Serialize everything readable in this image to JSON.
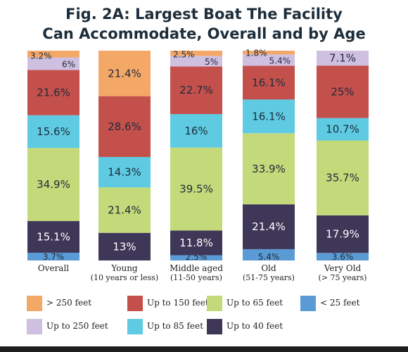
{
  "title_line1": "Fig. 2A: Largest Boat The Facility",
  "title_line2": "Can Accommodate, Overall and by Age",
  "chart_data": {
    "type": "bar",
    "stacked": true,
    "categories": [
      "Overall",
      "Young",
      "Middle aged",
      "Old",
      "Very Old"
    ],
    "category_sublabels": [
      "",
      "(10 years or less)",
      "(11-50 years)",
      "(51-75 years)",
      "(> 75 years)"
    ],
    "series": [
      {
        "name": "< 25 feet",
        "color": "#5b9bd5",
        "values": [
          3.7,
          0,
          2.5,
          5.4,
          3.6
        ],
        "labels": [
          "3.7%",
          "",
          "2.5%",
          "5.4%",
          "3.6%"
        ]
      },
      {
        "name": "Up to 40 feet",
        "color": "#3f3758",
        "values": [
          15.1,
          13,
          11.8,
          21.4,
          17.9
        ],
        "labels": [
          "15.1%",
          "13%",
          "11.8%",
          "21.4%",
          "17.9%"
        ]
      },
      {
        "name": "Up to 65 feet",
        "color": "#c3d97a",
        "values": [
          34.9,
          21.4,
          39.5,
          33.9,
          35.7
        ],
        "labels": [
          "34.9%",
          "21.4%",
          "39.5%",
          "33.9%",
          "35.7%"
        ]
      },
      {
        "name": "Up to 85 feet",
        "color": "#5ecbe2",
        "values": [
          15.6,
          14.3,
          16,
          16.1,
          10.7
        ],
        "labels": [
          "15.6%",
          "14.3%",
          "16%",
          "16.1%",
          "10.7%"
        ]
      },
      {
        "name": "Up to 150 feet",
        "color": "#c4504c",
        "values": [
          21.6,
          28.6,
          22.7,
          16.1,
          25
        ],
        "labels": [
          "21.6%",
          "28.6%",
          "22.7%",
          "16.1%",
          "25%"
        ]
      },
      {
        "name": "Up to 250 feet",
        "color": "#cfbfe0",
        "values": [
          6,
          0,
          5,
          5.4,
          7.1
        ],
        "labels": [
          "6%",
          "",
          "5%",
          "5.4%",
          "7.1%"
        ]
      },
      {
        "name": "> 250 feet",
        "color": "#f4a868",
        "values": [
          3.2,
          21.4,
          2.5,
          1.8,
          0
        ],
        "labels": [
          "3.2%",
          "21.4%",
          "2.5%",
          "1.8%",
          ""
        ]
      }
    ],
    "legend_order": [
      "> 250 feet",
      "Up to 150 feet",
      "Up to 65 feet",
      "< 25 feet",
      "Up to 250 feet",
      "Up to 85 feet",
      "Up to 40 feet"
    ],
    "legend_position": "bottom",
    "ylim": [
      0,
      100
    ],
    "grid": false
  }
}
